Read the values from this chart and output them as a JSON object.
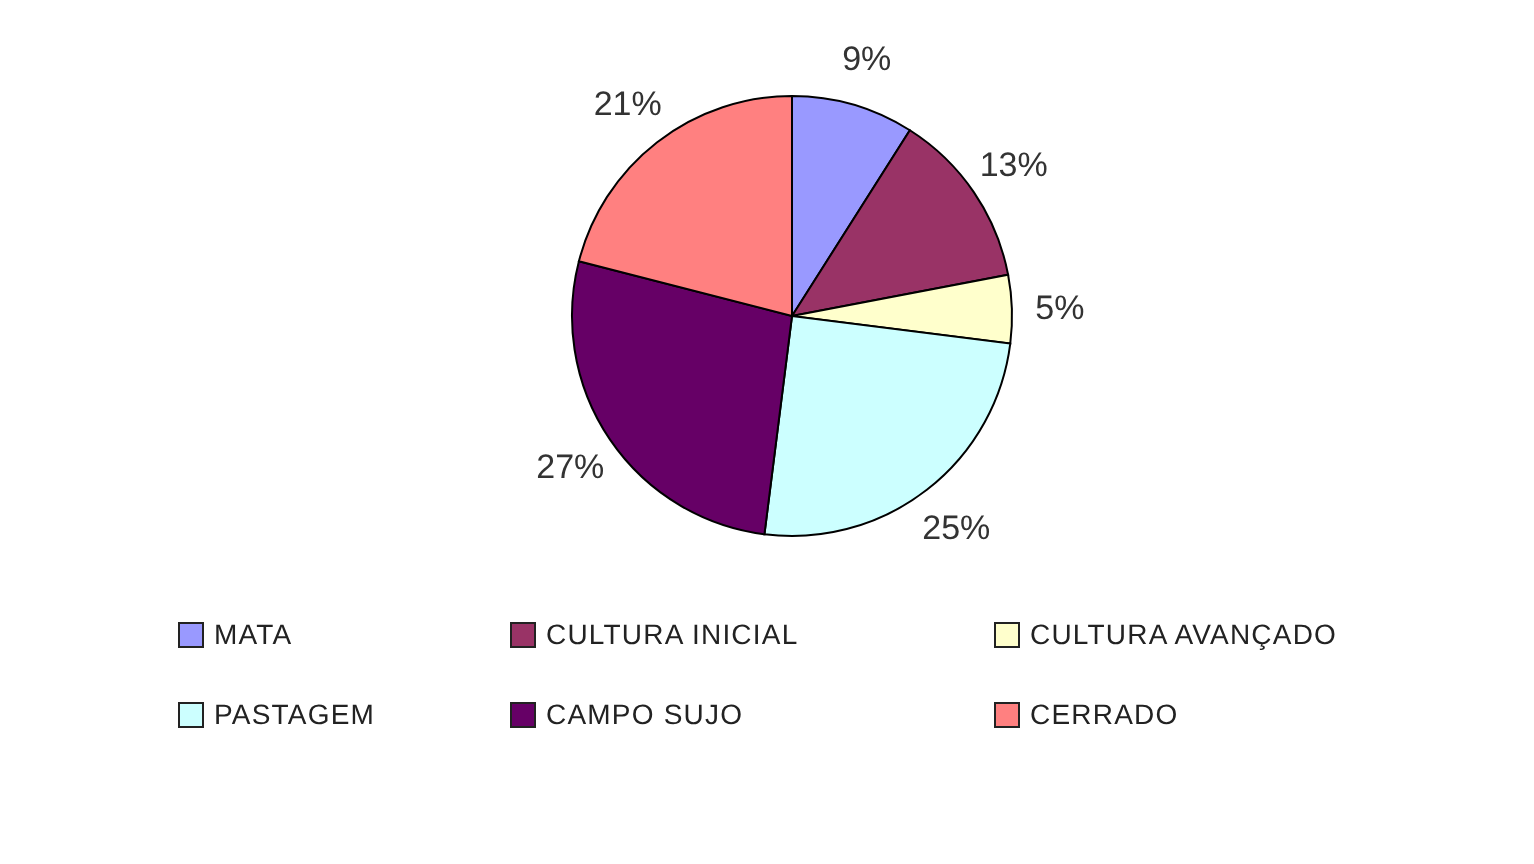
{
  "chart_data": {
    "type": "pie",
    "categories": [
      "MATA",
      "CULTURA INICIAL",
      "CULTURA AVANÇADO",
      "PASTAGEM",
      "CAMPO SUJO",
      "CERRADO"
    ],
    "values": [
      9,
      13,
      5,
      25,
      27,
      21
    ],
    "value_labels": [
      "9%",
      "13%",
      "5%",
      "25%",
      "27%",
      "21%"
    ],
    "colors": [
      "#9999ff",
      "#993366",
      "#ffffcc",
      "#ccffff",
      "#660066",
      "#ff8080"
    ],
    "legend": "bottom"
  }
}
